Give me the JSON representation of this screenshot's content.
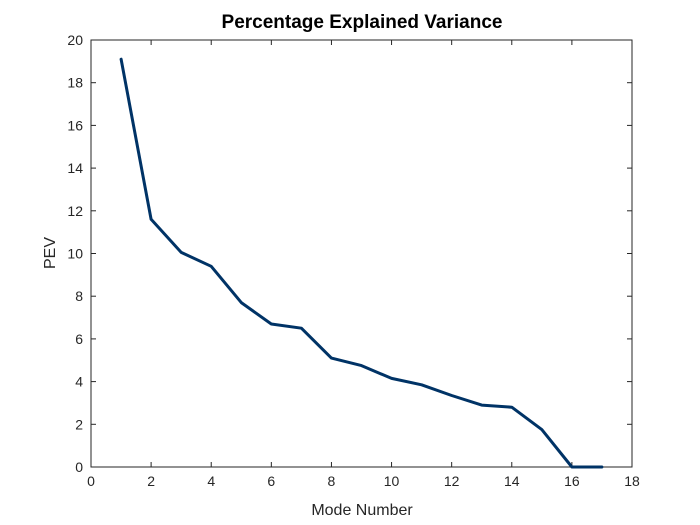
{
  "chart_data": {
    "type": "line",
    "title": "Percentage Explained Variance",
    "xlabel": "Mode Number",
    "ylabel": "PEV",
    "xlim": [
      0,
      18
    ],
    "ylim": [
      0,
      20
    ],
    "xticks": [
      0,
      2,
      4,
      6,
      8,
      10,
      12,
      14,
      16,
      18
    ],
    "yticks": [
      0,
      2,
      4,
      6,
      8,
      10,
      12,
      14,
      16,
      18,
      20
    ],
    "grid": false,
    "series": [
      {
        "color": "#003366",
        "x": [
          1,
          2,
          3,
          4,
          5,
          6,
          7,
          8,
          9,
          10,
          11,
          12,
          13,
          14,
          15,
          16,
          17
        ],
        "y": [
          19.1,
          11.6,
          10.05,
          9.4,
          7.7,
          6.7,
          6.5,
          5.1,
          4.75,
          4.15,
          3.85,
          3.35,
          2.9,
          2.8,
          1.75,
          0.0,
          0.0
        ]
      }
    ]
  }
}
